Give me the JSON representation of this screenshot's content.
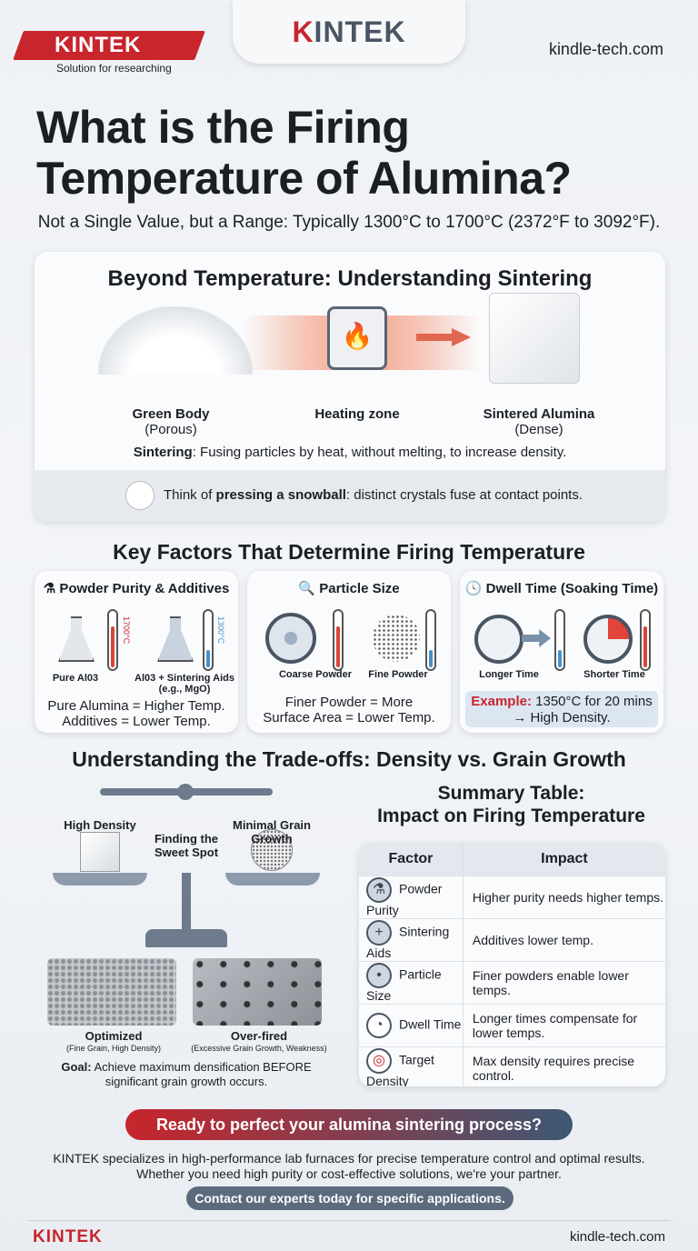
{
  "header": {
    "logo_text": "KINTEK",
    "logo_tagline": "Solution for researching",
    "center_brand_k": "K",
    "center_brand_rest": "INTEK",
    "website": "kindle-tech.com"
  },
  "title": "What is the Firing Temperature of Alumina?",
  "subtitle": "Not a Single Value, but a Range: Typically 1300°C to 1700°C (2372°F to 3092°F).",
  "sintering": {
    "heading": "Beyond Temperature: Understanding Sintering",
    "stages": [
      {
        "label": "Green Body",
        "sub": "(Porous)"
      },
      {
        "label": "Heating zone",
        "sub": ""
      },
      {
        "label": "Sintered Alumina",
        "sub": "(Dense)"
      }
    ],
    "definition_term": "Sintering",
    "definition_text": ": Fusing particles by heat, without melting, to increase density.",
    "analogy_prefix": "Think of ",
    "analogy_bold": "pressing a snowball",
    "analogy_suffix": ": distinct crystals fuse at contact points."
  },
  "factors": {
    "heading": "Key Factors That Determine Firing Temperature",
    "cards": [
      {
        "title": "Powder Purity & Additives",
        "icon": "flask-icon",
        "items": [
          "Pure Al03",
          "Al03 + Sintering Aids (e.g., MgO)"
        ],
        "thermo_labels": [
          "1700°C",
          "1300°C"
        ],
        "text": "Pure Alumina = Higher Temp. Additives = Lower Temp."
      },
      {
        "title": "Particle Size",
        "icon": "magnifier-icon",
        "items": [
          "Coarse Powder",
          "Fine Powder"
        ],
        "text": "Finer Powder = More Surface Area = Lower Temp."
      },
      {
        "title": "Dwell Time (Soaking Time)",
        "icon": "clock-icon",
        "items": [
          "Longer Time",
          "Shorter Time"
        ],
        "example_label": "Example:",
        "example_text": " 1350°C for 20 mins → High Density."
      }
    ]
  },
  "tradeoffs": {
    "heading": "Understanding the Trade-offs: Density vs. Grain Growth",
    "scale_left": "High Density",
    "scale_center": "Finding the Sweet Spot",
    "scale_right": "Minimal Grain Growth",
    "micro": [
      {
        "label": "Optimized",
        "sub": "(Fine Grain, High Density)"
      },
      {
        "label": "Over-fired",
        "sub": "(Excessive Grain Growth, Weakness)"
      }
    ],
    "goal_label": "Goal:",
    "goal_text": " Achieve maximum densification BEFORE significant grain growth occurs."
  },
  "summary": {
    "title_line1": "Summary Table:",
    "title_line2": "Impact on Firing Temperature",
    "columns": [
      "Factor",
      "Impact"
    ],
    "rows": [
      {
        "icon": "flask-icon",
        "factor": "Powder Purity",
        "impact": "Higher purity needs higher temps."
      },
      {
        "icon": "plus-icon",
        "factor": "Sintering Aids",
        "impact": "Additives lower temp."
      },
      {
        "icon": "particle-icon",
        "factor": "Particle Size",
        "impact": "Finer powders enable lower temps."
      },
      {
        "icon": "clock-icon",
        "factor": "Dwell Time",
        "impact": "Longer times compensate for lower temps."
      },
      {
        "icon": "target-icon",
        "factor": "Target Density",
        "impact": "Max density requires precise control."
      }
    ]
  },
  "cta": {
    "headline": "Ready to perfect your alumina sintering process?",
    "body_line1": "KINTEK specializes in high-performance lab furnaces for precise temperature control and optimal results.",
    "body_line2": "Whether you need high purity or cost-effective solutions, we're your partner.",
    "button": "Contact our experts today for specific applications."
  },
  "footer": {
    "logo": "KINTEK",
    "website": "kindle-tech.com"
  },
  "colors": {
    "brand_red": "#c8252c",
    "slate": "#4a5564",
    "hot": "#d9443a",
    "cool": "#4a90c8"
  }
}
